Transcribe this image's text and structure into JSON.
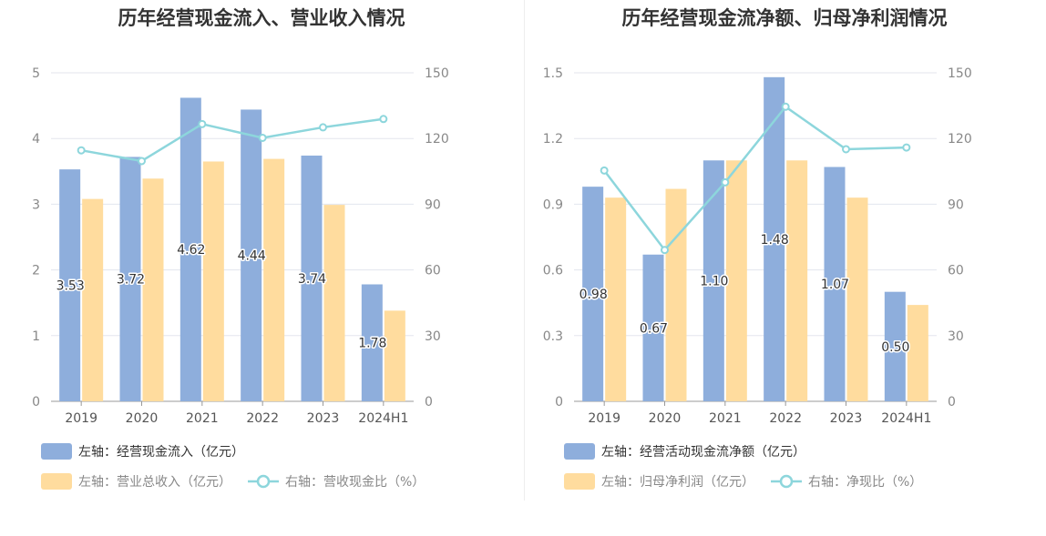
{
  "chart_data": [
    {
      "type": "bar",
      "title": "历年经营现金流入、营业收入情况",
      "categories": [
        "2019",
        "2020",
        "2021",
        "2022",
        "2023",
        "2024H1"
      ],
      "left_axis": {
        "ylim": [
          0,
          5
        ],
        "ticks": [
          "0",
          "1",
          "2",
          "3",
          "4",
          "5"
        ]
      },
      "right_axis": {
        "ylim": [
          0,
          150
        ],
        "ticks": [
          "0",
          "30",
          "60",
          "90",
          "120",
          "150"
        ]
      },
      "series": [
        {
          "name": "左轴：经营现金流入（亿元）",
          "type": "bar",
          "axis": "left",
          "color": "#8eaedc",
          "values": [
            3.53,
            3.72,
            4.62,
            4.44,
            3.74,
            1.78
          ],
          "labels": [
            "3.53",
            "3.72",
            "4.62",
            "4.44",
            "3.74",
            "1.78"
          ]
        },
        {
          "name": "左轴：营业总收入（亿元）",
          "type": "bar",
          "axis": "left",
          "color": "#ffdc9e",
          "values": [
            3.08,
            3.39,
            3.65,
            3.69,
            2.99,
            1.38
          ]
        },
        {
          "name": "右轴：营收现金比（%）",
          "type": "line",
          "axis": "right",
          "color": "#8dd6dc",
          "values": [
            114.6,
            109.7,
            126.6,
            120.3,
            125.1,
            128.9
          ]
        }
      ],
      "legend_position": "bottom-left",
      "grid": true
    },
    {
      "type": "bar",
      "title": "历年经营现金流净额、归母净利润情况",
      "categories": [
        "2019",
        "2020",
        "2021",
        "2022",
        "2023",
        "2024H1"
      ],
      "left_axis": {
        "ylim": [
          0,
          1.5
        ],
        "ticks": [
          "0",
          "0.3",
          "0.6",
          "0.9",
          "1.2",
          "1.5"
        ]
      },
      "right_axis": {
        "ylim": [
          0,
          150
        ],
        "ticks": [
          "0",
          "30",
          "60",
          "90",
          "120",
          "150"
        ]
      },
      "series": [
        {
          "name": "左轴：经营活动现金流净额（亿元）",
          "type": "bar",
          "axis": "left",
          "color": "#8eaedc",
          "values": [
            0.98,
            0.67,
            1.1,
            1.48,
            1.07,
            0.5
          ],
          "labels": [
            "0.98",
            "0.67",
            "1.10",
            "1.48",
            "1.07",
            "0.50"
          ]
        },
        {
          "name": "左轴：归母净利润（亿元）",
          "type": "bar",
          "axis": "left",
          "color": "#ffdc9e",
          "values": [
            0.93,
            0.97,
            1.1,
            1.1,
            0.93,
            0.44
          ]
        },
        {
          "name": "右轴：净现比（%）",
          "type": "line",
          "axis": "right",
          "color": "#8dd6dc",
          "values": [
            105.4,
            69.1,
            100.0,
            134.5,
            115.1,
            115.9
          ]
        }
      ],
      "legend_position": "bottom-left",
      "grid": true
    }
  ]
}
